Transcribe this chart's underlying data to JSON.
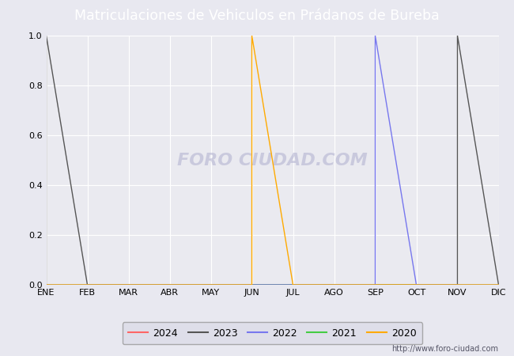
{
  "title": "Matriculaciones de Vehiculos en Prádanos de Bureba",
  "title_bg_color": "#5b7fc4",
  "title_text_color": "#ffffff",
  "months": [
    "ENE",
    "FEB",
    "MAR",
    "ABR",
    "MAY",
    "JUN",
    "JUL",
    "AGO",
    "SEP",
    "OCT",
    "NOV",
    "DIC"
  ],
  "month_indices": [
    0,
    1,
    2,
    3,
    4,
    5,
    6,
    7,
    8,
    9,
    10,
    11
  ],
  "ylim": [
    0.0,
    1.0
  ],
  "yticks": [
    0.0,
    0.2,
    0.4,
    0.6,
    0.8,
    1.0
  ],
  "series": {
    "2024": {
      "color": "#ff6666",
      "data": []
    },
    "2023": {
      "color": "#555555",
      "data": [
        0,
        10
      ]
    },
    "2022": {
      "color": "#7777ee",
      "data": [
        8
      ]
    },
    "2021": {
      "color": "#44cc44",
      "data": []
    },
    "2020": {
      "color": "#ffaa00",
      "data": [
        5
      ]
    }
  },
  "legend_order": [
    "2024",
    "2023",
    "2022",
    "2021",
    "2020"
  ],
  "fig_bg_color": "#e8e8f0",
  "plot_bg_color": "#eaeaf0",
  "grid_color": "#ffffff",
  "watermark": "FORO CIUDAD.COM",
  "url": "http://www.foro-ciudad.com",
  "title_fontsize": 12.5
}
